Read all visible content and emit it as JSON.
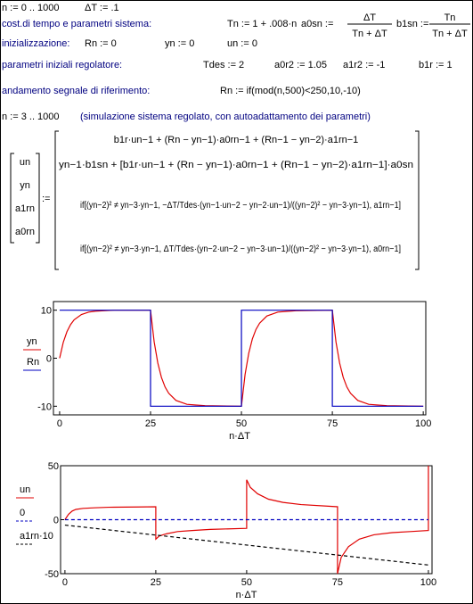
{
  "worksheet": {
    "range_n": "n := 0 .. 1000",
    "dt": "ΔT := .1",
    "h_const": "cost.di tempo e parametri sistema:",
    "Tn": "Tn := 1 + .008·n",
    "a0s_lhs": "a0sn :=",
    "a0s_num": "ΔT",
    "a0s_den": "Tn + ΔT",
    "b1s_lhs": "b1sn :=",
    "b1s_num": "Tn",
    "b1s_den": "Tn + ΔT",
    "h_init": "inizializzazione:",
    "R0": "Rn := 0",
    "y0": "yn := 0",
    "u0": "un := 0",
    "h_par": "parametri iniziali regolatore:",
    "Tdes": "Tdes := 2",
    "a0r2": "a0r2 := 1.05",
    "a1r2": "a1r2 := -1",
    "b1r": "b1r := 1",
    "h_ref": "andamento segnale di riferimento:",
    "Rdef": "Rn := if(mod(n,500)<250,10,-10)",
    "range_n2": "n := 3 .. 1000",
    "h_sim": "(simulazione sistema regolato, con autoadattamento dei parametri)",
    "lhs": [
      "un",
      "yn",
      "a1rn",
      "a0rn"
    ],
    "assign": ":=",
    "rhs": [
      "b1r·un−1 + (Rn − yn−1)·a0rn−1 + (Rn−1 − yn−2)·a1rn−1",
      "yn−1·b1sn + [b1r·un−1 + (Rn − yn−1)·a0rn−1 + (Rn−1 − yn−2)·a1rn−1]·a0sn",
      "if[(yn−2)² ≠ yn−3·yn−1, −ΔT/Tdes·(yn−1·un−2 − yn−2·un−1)/((yn−2)² − yn−3·yn−1), a1rn−1]",
      "if[(yn−2)² ≠ yn−3·yn−1, ΔT/Tdes·(yn−2·un−2 − yn−3·un−1)/((yn−2)² − yn−3·yn−1), a0rn−1]"
    ]
  },
  "chart_data": [
    {
      "type": "line",
      "x_label": "n·ΔT",
      "xlim": [
        -1.7,
        100.7
      ],
      "ylim": [
        -11.8,
        11.8
      ],
      "xticks": [
        0,
        25,
        50,
        75,
        100
      ],
      "yticks": [
        10,
        0,
        -10
      ],
      "series": [
        {
          "name": "yn",
          "color": "#e00000",
          "dashed": false,
          "x": [
            0,
            1,
            2,
            3,
            4,
            6,
            8,
            10,
            15,
            25,
            26,
            27,
            28,
            29,
            30,
            32,
            35,
            40,
            50,
            51,
            52,
            53,
            54,
            55,
            57,
            60,
            65,
            75,
            76,
            77,
            78,
            79,
            80,
            82,
            85,
            90,
            100
          ],
          "values": [
            0,
            3.3,
            5.5,
            7,
            8,
            9.1,
            9.6,
            9.8,
            10,
            10,
            3.4,
            -1,
            -4,
            -6,
            -7.3,
            -8.8,
            -9.6,
            -9.9,
            -10,
            -3.4,
            1,
            4,
            6,
            7.3,
            8.8,
            9.6,
            9.9,
            10,
            3.4,
            -1,
            -4,
            -6,
            -7.3,
            -8.8,
            -9.6,
            -9.9,
            -10
          ]
        },
        {
          "name": "Rn",
          "color": "#0000c0",
          "dashed": false,
          "x": [
            0,
            25,
            25,
            50,
            50,
            75,
            75,
            100
          ],
          "values": [
            10,
            10,
            -10,
            -10,
            10,
            10,
            -10,
            -10
          ]
        }
      ]
    },
    {
      "type": "line",
      "x_label": "n·ΔT",
      "xlim": [
        -1.2,
        101
      ],
      "ylim": [
        -50,
        50
      ],
      "xticks": [
        0,
        25,
        50,
        75,
        100
      ],
      "yticks": [
        50,
        0,
        -50
      ],
      "series": [
        {
          "name": "un",
          "color": "#e00000",
          "dashed": false,
          "x": [
            0,
            1,
            2,
            3,
            5,
            8,
            12,
            20,
            25,
            25,
            26,
            28,
            31,
            35,
            40,
            50,
            50,
            51,
            53,
            56,
            60,
            65,
            75,
            75,
            76,
            78,
            81,
            85,
            90,
            95,
            100,
            100
          ],
          "values": [
            0,
            5,
            8,
            9.5,
            10.5,
            11,
            11.5,
            11.8,
            12,
            -18,
            -15,
            -13,
            -11,
            -10,
            -9,
            -8,
            37,
            30,
            24,
            19,
            16,
            14,
            12,
            -50,
            -35,
            -25,
            -18,
            -14,
            -12,
            -11,
            -10,
            50
          ]
        },
        {
          "name": "0",
          "color": "#0000c0",
          "dashed": true,
          "x": [
            0,
            100
          ],
          "values": [
            0,
            0
          ]
        },
        {
          "name": "a1rn·10",
          "color": "#000000",
          "dashed": true,
          "x": [
            0,
            100
          ],
          "values": [
            -5,
            -42
          ]
        }
      ]
    }
  ]
}
